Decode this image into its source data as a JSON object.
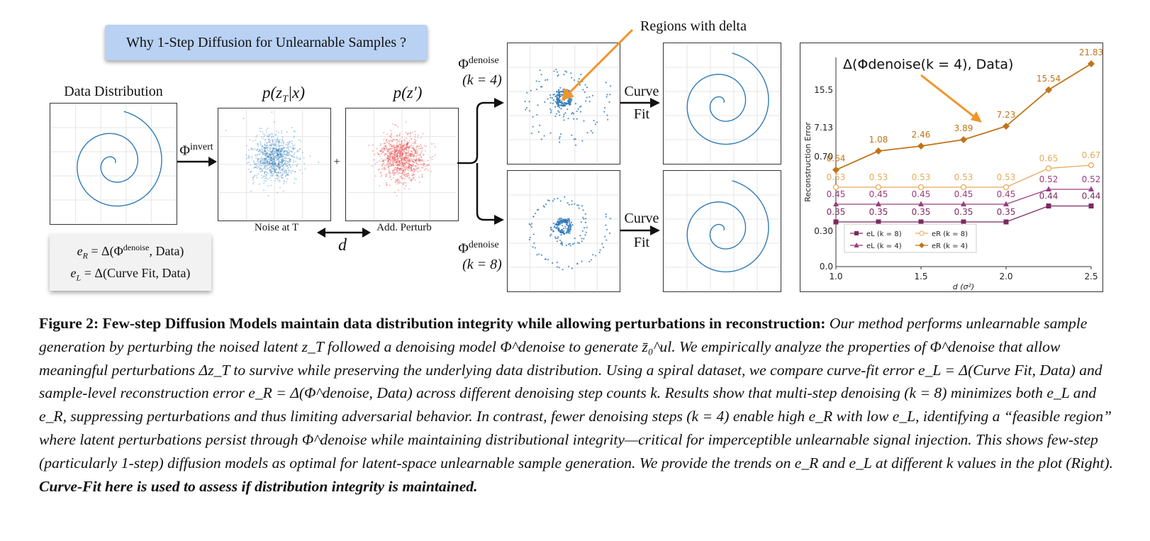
{
  "banner": {
    "text": "Why 1-Step Diffusion for Unlearnable Samples ?"
  },
  "labels": {
    "data_distribution": "Data Distribution",
    "phi_invert": "Φ",
    "phi_invert_sup": "invert",
    "p_zt": "p(z",
    "p_zt_sub": "T",
    "p_zt_end": "|x)",
    "p_zprime": "p(z′)",
    "noise_at_t": "Noise at T",
    "add_perturb": "Add. Perturb",
    "plus": "+",
    "d": "d",
    "phi_denoise_top": "Φ",
    "phi_denoise_sup": "denoise",
    "k4": "(k = 4)",
    "k8": "(k = 8)",
    "curve": "Curve",
    "fit": "Fit",
    "regions": "Regions with delta"
  },
  "legend_box": {
    "eR": "e",
    "eR_sub": "R",
    "eR_rest": " = Δ(Φ",
    "eR_sup": "denoise",
    "eR_end": ", Data)",
    "eL": "e",
    "eL_sub": "L",
    "eL_rest": " = Δ(Curve Fit, Data)"
  },
  "chart_data": {
    "type": "line",
    "title": "Δ(Φdenoise(k = 4), Data)",
    "xlabel": "d (σ²)",
    "ylabel": "Reconstruction Error",
    "x": [
      1.0,
      1.25,
      1.5,
      1.75,
      2.0,
      2.25,
      2.5
    ],
    "x_ticks": [
      "1.0",
      "1.5",
      "2.0",
      "2.5"
    ],
    "y_ticks": [
      "0.0",
      "0.30",
      "0.70",
      "7.13",
      "15.5"
    ],
    "series": [
      {
        "name": "eL (k = 8)",
        "values": [
          0.35,
          0.35,
          0.35,
          0.35,
          0.35,
          0.44,
          0.44
        ],
        "color": "#7b2a5f",
        "marker": "square"
      },
      {
        "name": "eL (k = 4)",
        "values": [
          0.45,
          0.45,
          0.45,
          0.45,
          0.45,
          0.52,
          0.52
        ],
        "color": "#9b3c7f",
        "marker": "triangle"
      },
      {
        "name": "eR (k = 8)",
        "values": [
          0.53,
          0.53,
          0.53,
          0.53,
          0.53,
          0.65,
          0.67
        ],
        "color": "#e8a95a",
        "marker": "circle-open"
      },
      {
        "name": "eR (k = 4)",
        "values": [
          0.64,
          1.08,
          2.46,
          3.89,
          7.23,
          15.54,
          21.83
        ],
        "color": "#c07418",
        "marker": "diamond"
      }
    ],
    "data_labels": {
      "eR_k4": [
        "0.64",
        "1.08",
        "2.46",
        "3.89",
        "7.23",
        "15.54",
        "21.83"
      ],
      "eR_k8": [
        "0.53",
        "0.53",
        "0.53",
        "0.53",
        "0.53",
        "0.65",
        "0.67"
      ],
      "eL_k4": [
        "0.45",
        "0.45",
        "0.45",
        "0.45",
        "0.45",
        "0.52",
        "0.52"
      ],
      "eL_k8": [
        "0.35",
        "0.35",
        "0.35",
        "0.35",
        "0.35",
        "0.44",
        "0.44"
      ]
    },
    "legend": [
      "eL (k = 8)",
      "eR (k = 8)",
      "eL (k = 4)",
      "eR (k = 4)"
    ],
    "legend_placement": "bottom-left",
    "grid": false
  },
  "caption": {
    "bold": "Figure 2: Few-step Diffusion Models maintain data distribution integrity while allowing perturbations in reconstruction:",
    "body": " Our method performs unlearnable sample generation by perturbing the noised latent z_T followed a denoising model Φ^denoise to generate z̄₀^ul. We empirically analyze the properties of Φ^denoise that allow meaningful perturbations Δz_T to survive while preserving the underlying data distribution. Using a spiral dataset, we compare curve-fit error e_L = Δ(Curve Fit, Data) and sample-level reconstruction error e_R = Δ(Φ^denoise, Data) across different denoising step counts k. Results show that multi-step denoising (k = 8) minimizes both e_L and e_R, suppressing perturbations and thus limiting adversarial behavior. In contrast, fewer denoising steps (k = 4) enable high e_R with low e_L, identifying a “feasible region” where latent perturbations persist through Φ^denoise while maintaining distributional integrity—critical for imperceptible unlearnable signal injection. This shows few-step (particularly 1-step) diffusion models as optimal for latent-space unlearnable sample generation. We provide the trends on e_R and e_L at different k values in the plot (Right).",
    "end": " Curve-Fit here is used to assess if distribution integrity is maintained."
  }
}
